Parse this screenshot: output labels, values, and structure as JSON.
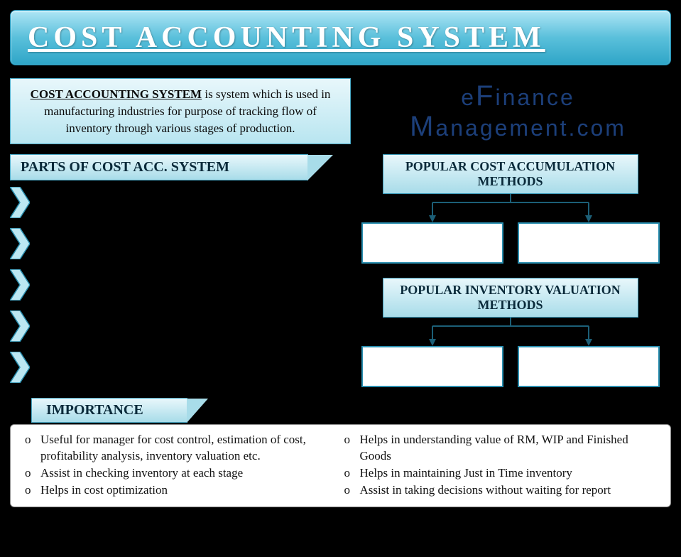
{
  "title": "COST ACCOUNTING SYSTEM",
  "definition": {
    "lead": "COST ACCOUNTING SYSTEM",
    "body": " is system which is used in manufacturing industries for purpose of tracking flow of inventory through various stages of production."
  },
  "logo": {
    "line1_a": "e",
    "line1_b": "F",
    "line1_c": "inance",
    "line2_a": "M",
    "line2_b": "anagement.com"
  },
  "parts_header": "PARTS OF COST ACC. SYSTEM",
  "parts_count": 5,
  "methods": [
    {
      "header": "POPULAR COST ACCUMULATION METHODS",
      "leaf_count": 2
    },
    {
      "header": "POPULAR INVENTORY VALUATION METHODS",
      "leaf_count": 2
    }
  ],
  "importance_header": "IMPORTANCE",
  "importance": {
    "left": [
      "Useful for manager for cost control, estimation of cost, profitability analysis, inventory valuation etc.",
      "Assist in checking inventory at each stage",
      "Helps in cost optimization"
    ],
    "right": [
      "Helps in understanding value of RM, WIP and Finished Goods",
      "Helps in maintaining Just in Time inventory",
      "Assist in taking decisions without waiting for report"
    ]
  },
  "colors": {
    "bg": "#000000",
    "banner_top": "#aee6f5",
    "banner_mid": "#5ac0db",
    "banner_bot": "#2ea5c7",
    "box_border": "#3a99b8",
    "chevron_fill": "#bce7f2",
    "chevron_stroke": "#2a8fb0",
    "arrow_stroke": "#1c5f77",
    "logo_text": "#1c3f7a"
  }
}
